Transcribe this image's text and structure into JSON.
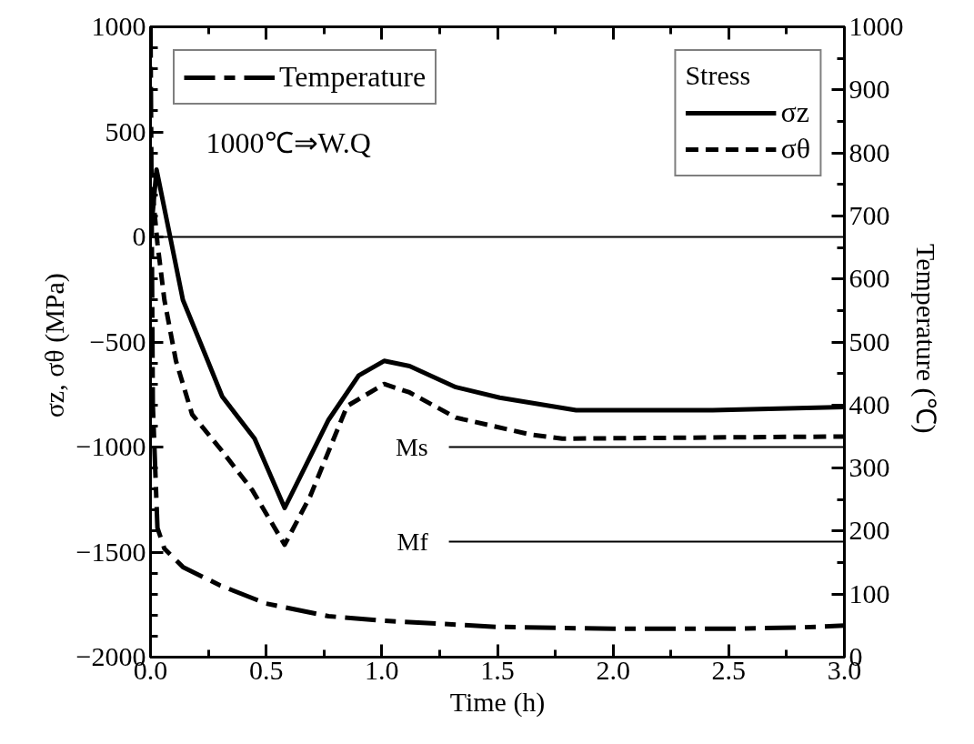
{
  "chart_data": {
    "type": "line",
    "xlabel": "Time (h)",
    "ylabel": "σz, σθ  (MPa)",
    "y2label": "Temperature  (℃)",
    "xlim": [
      0,
      3
    ],
    "xticks": [
      {
        "value": 0,
        "label": "0.0"
      },
      {
        "value": 0.5,
        "label": "0.5"
      },
      {
        "value": 1,
        "label": "1.0"
      },
      {
        "value": 1.5,
        "label": "1.5"
      },
      {
        "value": 2,
        "label": "2.0"
      },
      {
        "value": 2.5,
        "label": "2.5"
      },
      {
        "value": 3,
        "label": "3.0"
      }
    ],
    "ylim": [
      -2000,
      1000
    ],
    "yticks": [
      -2000,
      -1500,
      -1000,
      -500,
      0,
      500,
      1000
    ],
    "y2lim": [
      0,
      1000
    ],
    "y2ticks": [
      0,
      100,
      200,
      300,
      400,
      500,
      600,
      700,
      800,
      900,
      1000
    ],
    "legend": "top",
    "legend_title": "Stress",
    "grid": false,
    "annotations": [
      "1000℃⇒W.Q"
    ],
    "ref_lines": [
      {
        "axis": "y",
        "value": 0,
        "label": null
      },
      {
        "axis": "y",
        "value": -1000,
        "label": "Ms"
      },
      {
        "axis": "y",
        "value": -1450,
        "label": "Mf"
      }
    ],
    "series": [
      {
        "name": "Temperature",
        "color": "#000000",
        "axis": "y2",
        "line_style": "dashdot",
        "x": [
          0,
          0.01,
          0.03,
          0.06,
          0.14,
          0.3,
          0.5,
          0.77,
          1.0,
          1.5,
          2.0,
          2.5,
          2.8,
          3.0
        ],
        "values": [
          1000,
          400,
          205,
          172,
          143,
          114,
          85,
          65,
          58,
          48,
          45,
          45,
          47,
          50
        ]
      },
      {
        "name": "σz",
        "color": "#000000",
        "axis": "y",
        "line_style": "solid",
        "x": [
          0,
          0.026,
          0.085,
          0.14,
          0.22,
          0.31,
          0.45,
          0.58,
          0.77,
          0.9,
          1.01,
          1.12,
          1.32,
          1.51,
          1.84,
          2.43,
          3.0
        ],
        "values": [
          0,
          320,
          0,
          -300,
          -515,
          -760,
          -960,
          -1290,
          -870,
          -660,
          -590,
          -615,
          -715,
          -765,
          -825,
          -825,
          -810
        ]
      },
      {
        "name": "σθ",
        "color": "#000000",
        "axis": "y",
        "line_style": "dashed",
        "x": [
          0,
          0.01,
          0.03,
          0.06,
          0.11,
          0.18,
          0.31,
          0.44,
          0.58,
          0.69,
          0.85,
          1.01,
          1.12,
          1.32,
          1.64,
          1.78,
          2.96,
          3.0
        ],
        "values": [
          0,
          200,
          -30,
          -300,
          -590,
          -845,
          -1020,
          -1205,
          -1465,
          -1235,
          -805,
          -700,
          -740,
          -860,
          -940,
          -960,
          -950,
          -950
        ]
      }
    ]
  }
}
